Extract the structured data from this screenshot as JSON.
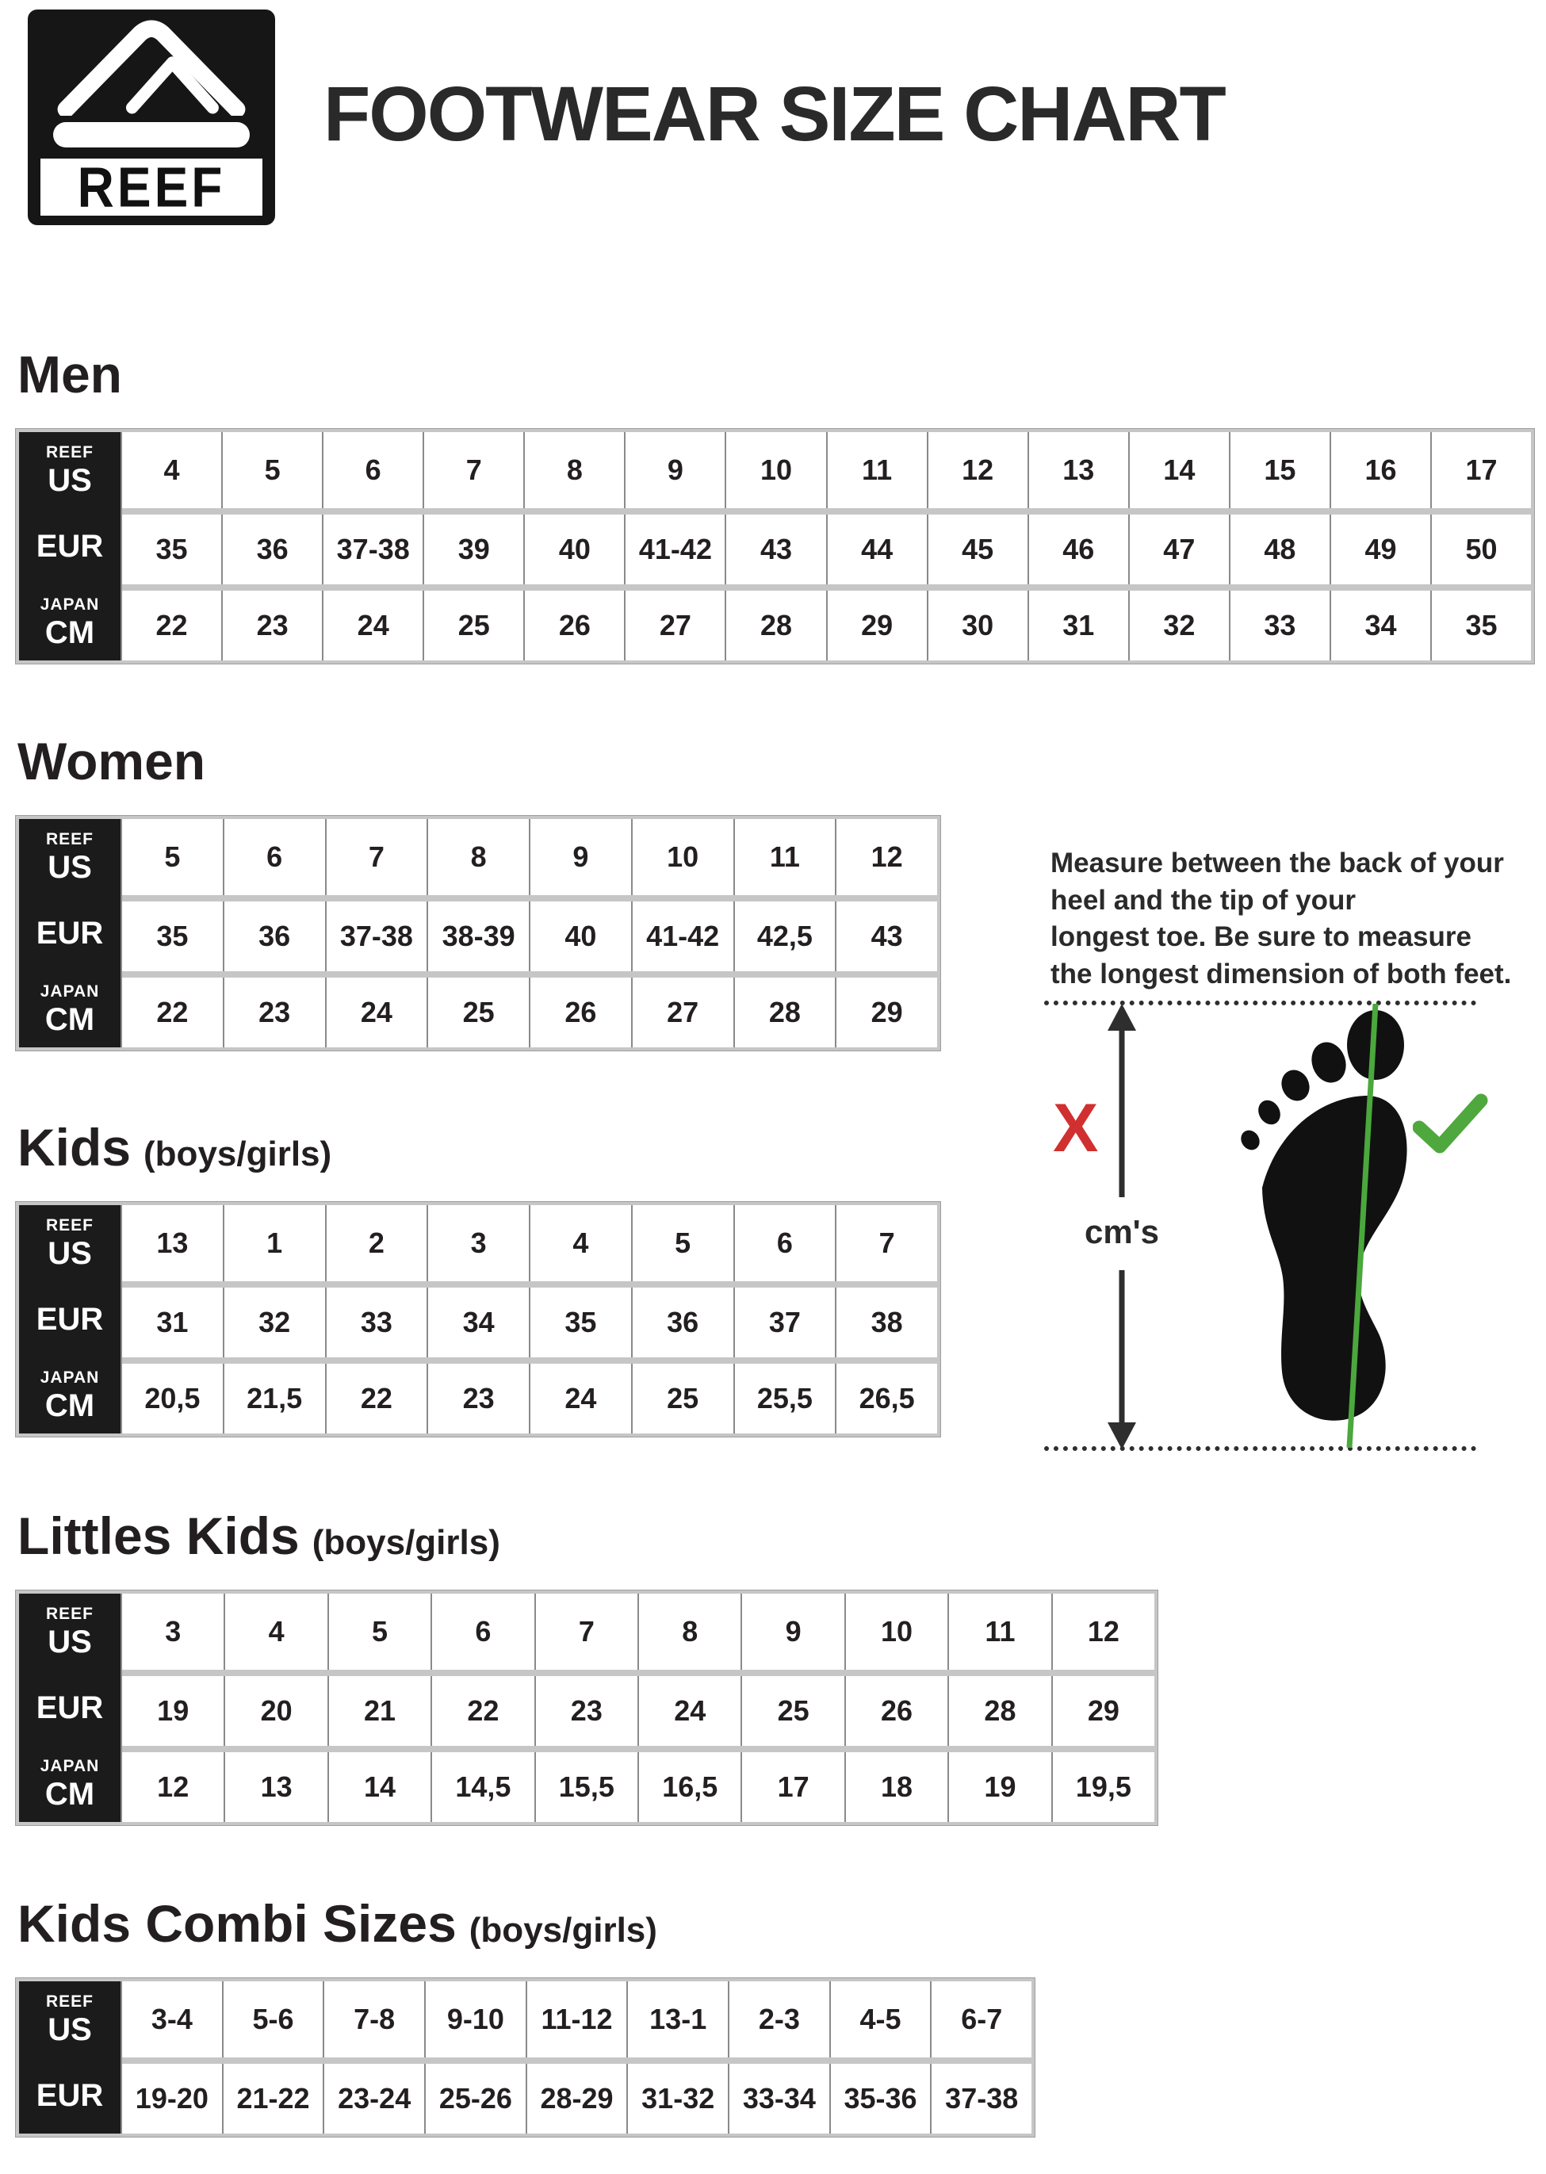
{
  "header": {
    "logo_text": "REEF",
    "title": "FOOTWEAR SIZE CHART"
  },
  "row_labels": {
    "us": {
      "small": "REEF",
      "big": "US"
    },
    "eur": {
      "big": "EUR"
    },
    "cm": {
      "small": "JAPAN",
      "big": "CM"
    }
  },
  "sections": [
    {
      "id": "men",
      "title": "Men",
      "subtitle": "",
      "row_keys": [
        "us",
        "eur",
        "cm"
      ],
      "rows": {
        "us": [
          "4",
          "5",
          "6",
          "7",
          "8",
          "9",
          "10",
          "11",
          "12",
          "13",
          "14",
          "15",
          "16",
          "17"
        ],
        "eur": [
          "35",
          "36",
          "37-38",
          "39",
          "40",
          "41-42",
          "43",
          "44",
          "45",
          "46",
          "47",
          "48",
          "49",
          "50"
        ],
        "cm": [
          "22",
          "23",
          "24",
          "25",
          "26",
          "27",
          "28",
          "29",
          "30",
          "31",
          "32",
          "33",
          "34",
          "35"
        ]
      }
    },
    {
      "id": "women",
      "title": "Women",
      "subtitle": "",
      "row_keys": [
        "us",
        "eur",
        "cm"
      ],
      "rows": {
        "us": [
          "5",
          "6",
          "7",
          "8",
          "9",
          "10",
          "11",
          "12"
        ],
        "eur": [
          "35",
          "36",
          "37-38",
          "38-39",
          "40",
          "41-42",
          "42,5",
          "43"
        ],
        "cm": [
          "22",
          "23",
          "24",
          "25",
          "26",
          "27",
          "28",
          "29"
        ]
      }
    },
    {
      "id": "kids",
      "title": "Kids",
      "subtitle": "(boys/girls)",
      "row_keys": [
        "us",
        "eur",
        "cm"
      ],
      "rows": {
        "us": [
          "13",
          "1",
          "2",
          "3",
          "4",
          "5",
          "6",
          "7"
        ],
        "eur": [
          "31",
          "32",
          "33",
          "34",
          "35",
          "36",
          "37",
          "38"
        ],
        "cm": [
          "20,5",
          "21,5",
          "22",
          "23",
          "24",
          "25",
          "25,5",
          "26,5"
        ]
      }
    },
    {
      "id": "littles",
      "title": "Littles Kids",
      "subtitle": "(boys/girls)",
      "row_keys": [
        "us",
        "eur",
        "cm"
      ],
      "rows": {
        "us": [
          "3",
          "4",
          "5",
          "6",
          "7",
          "8",
          "9",
          "10",
          "11",
          "12"
        ],
        "eur": [
          "19",
          "20",
          "21",
          "22",
          "23",
          "24",
          "25",
          "26",
          "28",
          "29"
        ],
        "cm": [
          "12",
          "13",
          "14",
          "14,5",
          "15,5",
          "16,5",
          "17",
          "18",
          "19",
          "19,5"
        ]
      }
    },
    {
      "id": "combi",
      "title": "Kids Combi Sizes",
      "subtitle": "(boys/girls)",
      "row_keys": [
        "us",
        "eur"
      ],
      "rows": {
        "us": [
          "3-4",
          "5-6",
          "7-8",
          "9-10",
          "11-12",
          "13-1",
          "2-3",
          "4-5",
          "6-7"
        ],
        "eur": [
          "19-20",
          "21-22",
          "23-24",
          "25-26",
          "28-29",
          "31-32",
          "33-34",
          "35-36",
          "37-38"
        ]
      }
    }
  ],
  "measure_note": "Measure between the back of your\nheel and the tip of your\nlongest toe. Be sure to measure\nthe longest dimension of both feet.",
  "diagram": {
    "x_label": "X",
    "cm_label": "cm's",
    "x_color": "#d0302f",
    "check_color": "#4fa83d",
    "line_color": "#4aa83c",
    "foot_color": "#111111",
    "arrow_color": "#2e2e2e"
  }
}
